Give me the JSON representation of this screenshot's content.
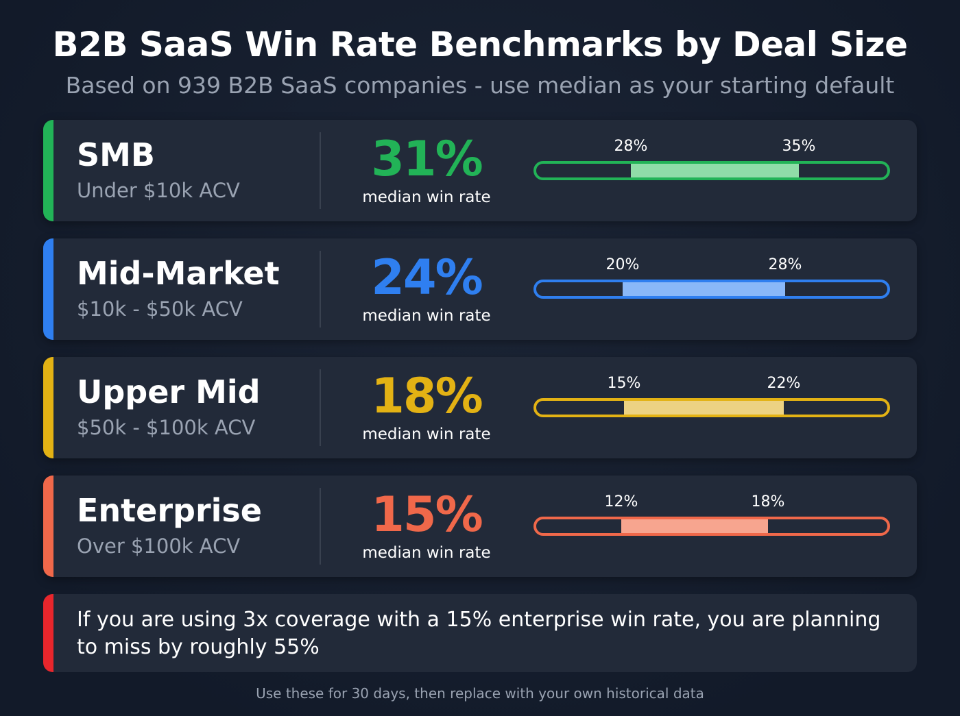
{
  "header": {
    "title": "B2B SaaS Win Rate Benchmarks by Deal Size",
    "subtitle": "Based on 939 B2B SaaS companies - use median as your starting default"
  },
  "segments": [
    {
      "name": "SMB",
      "range": "Under $10k ACV",
      "median": "31%",
      "median_caption": "median win rate",
      "low": "28%",
      "high": "35%",
      "color": "#22b357",
      "light_color": "#8fdca8"
    },
    {
      "name": "Mid-Market",
      "range": "$10k - $50k ACV",
      "median": "24%",
      "median_caption": "median win rate",
      "low": "20%",
      "high": "28%",
      "color": "#2f7ff0",
      "light_color": "#8ab8f8"
    },
    {
      "name": "Upper Mid",
      "range": "$50k - $100k ACV",
      "median": "18%",
      "median_caption": "median win rate",
      "low": "15%",
      "high": "22%",
      "color": "#e3b214",
      "light_color": "#ecd283"
    },
    {
      "name": "Enterprise",
      "range": "Over $100k ACV",
      "median": "15%",
      "median_caption": "median win rate",
      "low": "12%",
      "high": "18%",
      "color": "#f0684a",
      "light_color": "#f7a58f"
    }
  ],
  "note": {
    "text": "If you are using 3x coverage with a 15% enterprise win rate, you are planning to miss by roughly 55%",
    "color": "#e8262c"
  },
  "footer": "Use these for 30 days, then replace with your own historical data"
}
